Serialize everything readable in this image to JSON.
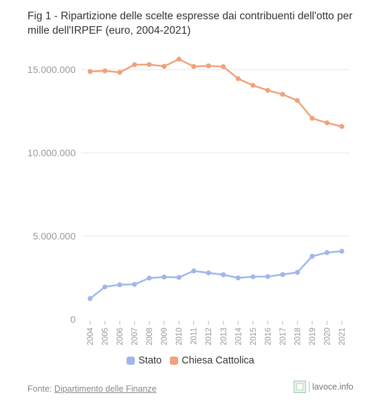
{
  "title": "Fig 1 - Ripartizione delle scelte espresse dai contribuenti dell'otto per mille dell'IRPEF (euro, 2004-2021)",
  "source_prefix": "Fonte: ",
  "source_link": "Dipartimento delle Finanze",
  "brand": "lavoce.info",
  "colors": {
    "stato": "#a1b6ec",
    "chiesa": "#f0a27a",
    "grid": "#e6e6e6",
    "tick": "#bbbbbb"
  },
  "chart_data": {
    "type": "line",
    "title": "Fig 1 - Ripartizione delle scelte espresse dai contribuenti dell'otto per mille dell'IRPEF (euro, 2004-2021)",
    "xlabel": "",
    "ylabel": "",
    "categories": [
      "2004",
      "2005",
      "2006",
      "2007",
      "2008",
      "2009",
      "2010",
      "2011",
      "2012",
      "2013",
      "2014",
      "2015",
      "2016",
      "2017",
      "2018",
      "2019",
      "2020",
      "2021"
    ],
    "y_ticks": [
      0,
      5000000,
      10000000,
      15000000
    ],
    "y_tick_labels": [
      "0",
      "5.000.000",
      "10.000.000",
      "15.000.000"
    ],
    "ylim": [
      0,
      15500000
    ],
    "grid": true,
    "legend_position": "bottom",
    "series": [
      {
        "name": "Stato",
        "color": "#a1b6ec",
        "values": [
          1250000,
          1950000,
          2080000,
          2100000,
          2480000,
          2540000,
          2520000,
          2910000,
          2790000,
          2680000,
          2490000,
          2560000,
          2570000,
          2690000,
          2820000,
          3790000,
          4010000,
          4090000
        ]
      },
      {
        "name": "Chiesa Cattolica",
        "color": "#f0a27a",
        "values": [
          14880000,
          14920000,
          14830000,
          15290000,
          15300000,
          15190000,
          15620000,
          15180000,
          15220000,
          15170000,
          14450000,
          14050000,
          13750000,
          13510000,
          13140000,
          12070000,
          11800000,
          11580000
        ]
      }
    ]
  }
}
